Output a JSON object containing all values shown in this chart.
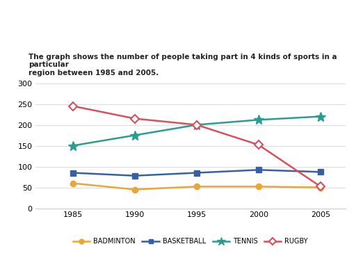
{
  "years": [
    1985,
    1990,
    1995,
    2000,
    2005
  ],
  "badminton": [
    60,
    45,
    52,
    52,
    50
  ],
  "basketball": [
    85,
    78,
    85,
    92,
    87
  ],
  "tennis": [
    150,
    175,
    200,
    212,
    220
  ],
  "rugby": [
    245,
    215,
    200,
    152,
    52
  ],
  "badminton_color": "#e8a838",
  "basketball_color": "#3a5fa0",
  "tennis_color": "#2a9d8f",
  "rugby_color": "#d94f5c",
  "title": "The graph shows the number of people taking part in 4 kinds of sports in a particular\nregion between 1985 and 2005.",
  "ylim": [
    0,
    320
  ],
  "yticks": [
    0,
    50,
    100,
    150,
    200,
    250,
    300
  ],
  "bg_color": "#ffffff",
  "legend_labels": [
    "BADMINTON",
    "BASKETBALL",
    "TENNIS",
    "RUGBY"
  ]
}
